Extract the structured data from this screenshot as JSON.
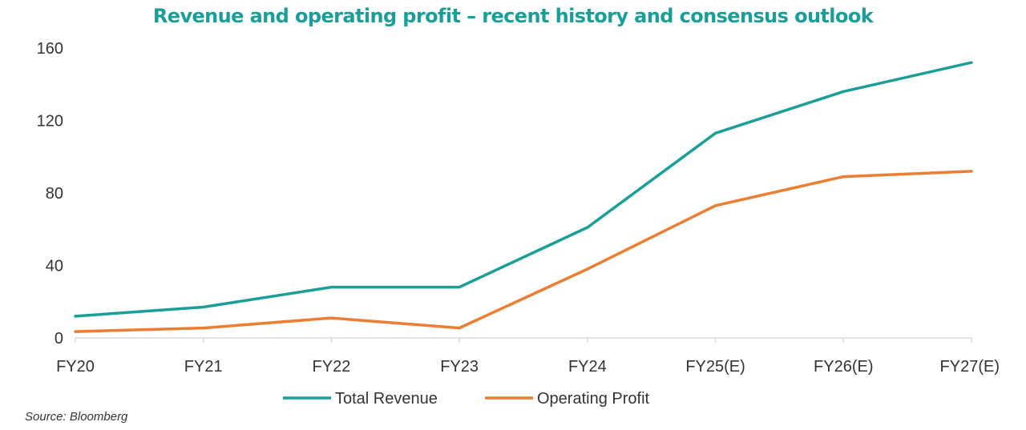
{
  "chart_data": {
    "type": "line",
    "title": "Revenue and operating profit – recent history and consensus outlook",
    "categories": [
      "FY20",
      "FY21",
      "FY22",
      "FY23",
      "FY24",
      "FY25(E)",
      "FY26(E)",
      "FY27(E)"
    ],
    "series": [
      {
        "name": "Total Revenue",
        "color": "#1a9e98",
        "values": [
          12,
          17,
          28,
          28,
          61,
          113,
          136,
          152
        ]
      },
      {
        "name": "Operating Profit",
        "color": "#ed7d31",
        "values": [
          3.5,
          5.5,
          11,
          5.5,
          38,
          73,
          89,
          92
        ]
      }
    ],
    "yticks": [
      "0",
      "40",
      "80",
      "120",
      "160"
    ],
    "ylim": [
      0,
      160
    ],
    "xlabel": "",
    "ylabel": "",
    "grid": false,
    "legend_position": "bottom"
  },
  "source": "Source: Bloomberg",
  "colors": {
    "title": "#1a9e98",
    "axis": "#d9d9d9",
    "text": "#333333"
  }
}
